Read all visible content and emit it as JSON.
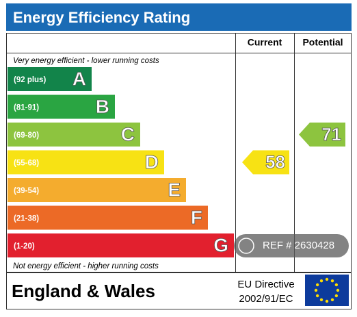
{
  "header": {
    "title": "Energy Efficiency Rating"
  },
  "columns": [
    "Current",
    "Potential"
  ],
  "top_note": "Very energy efficient - lower running costs",
  "bottom_note": "Not energy efficient - higher running costs",
  "bands": [
    {
      "range": "(92 plus)",
      "letter": "A",
      "color": "#12844a"
    },
    {
      "range": "(81-91)",
      "letter": "B",
      "color": "#2aa542"
    },
    {
      "range": "(69-80)",
      "letter": "C",
      "color": "#8dc43f"
    },
    {
      "range": "(55-68)",
      "letter": "D",
      "color": "#f7e214"
    },
    {
      "range": "(39-54)",
      "letter": "E",
      "color": "#f4ac2e"
    },
    {
      "range": "(21-38)",
      "letter": "F",
      "color": "#ec6a26"
    },
    {
      "range": "(1-20)",
      "letter": "G",
      "color": "#e2202e"
    }
  ],
  "current": {
    "value": 58,
    "color": "#f7e214"
  },
  "potential": {
    "value": 71,
    "color": "#8dc43f"
  },
  "footer": {
    "region": "England & Wales",
    "directive": [
      "EU Directive",
      "2002/91/EC"
    ]
  },
  "watermark": "REF # 2630428"
}
